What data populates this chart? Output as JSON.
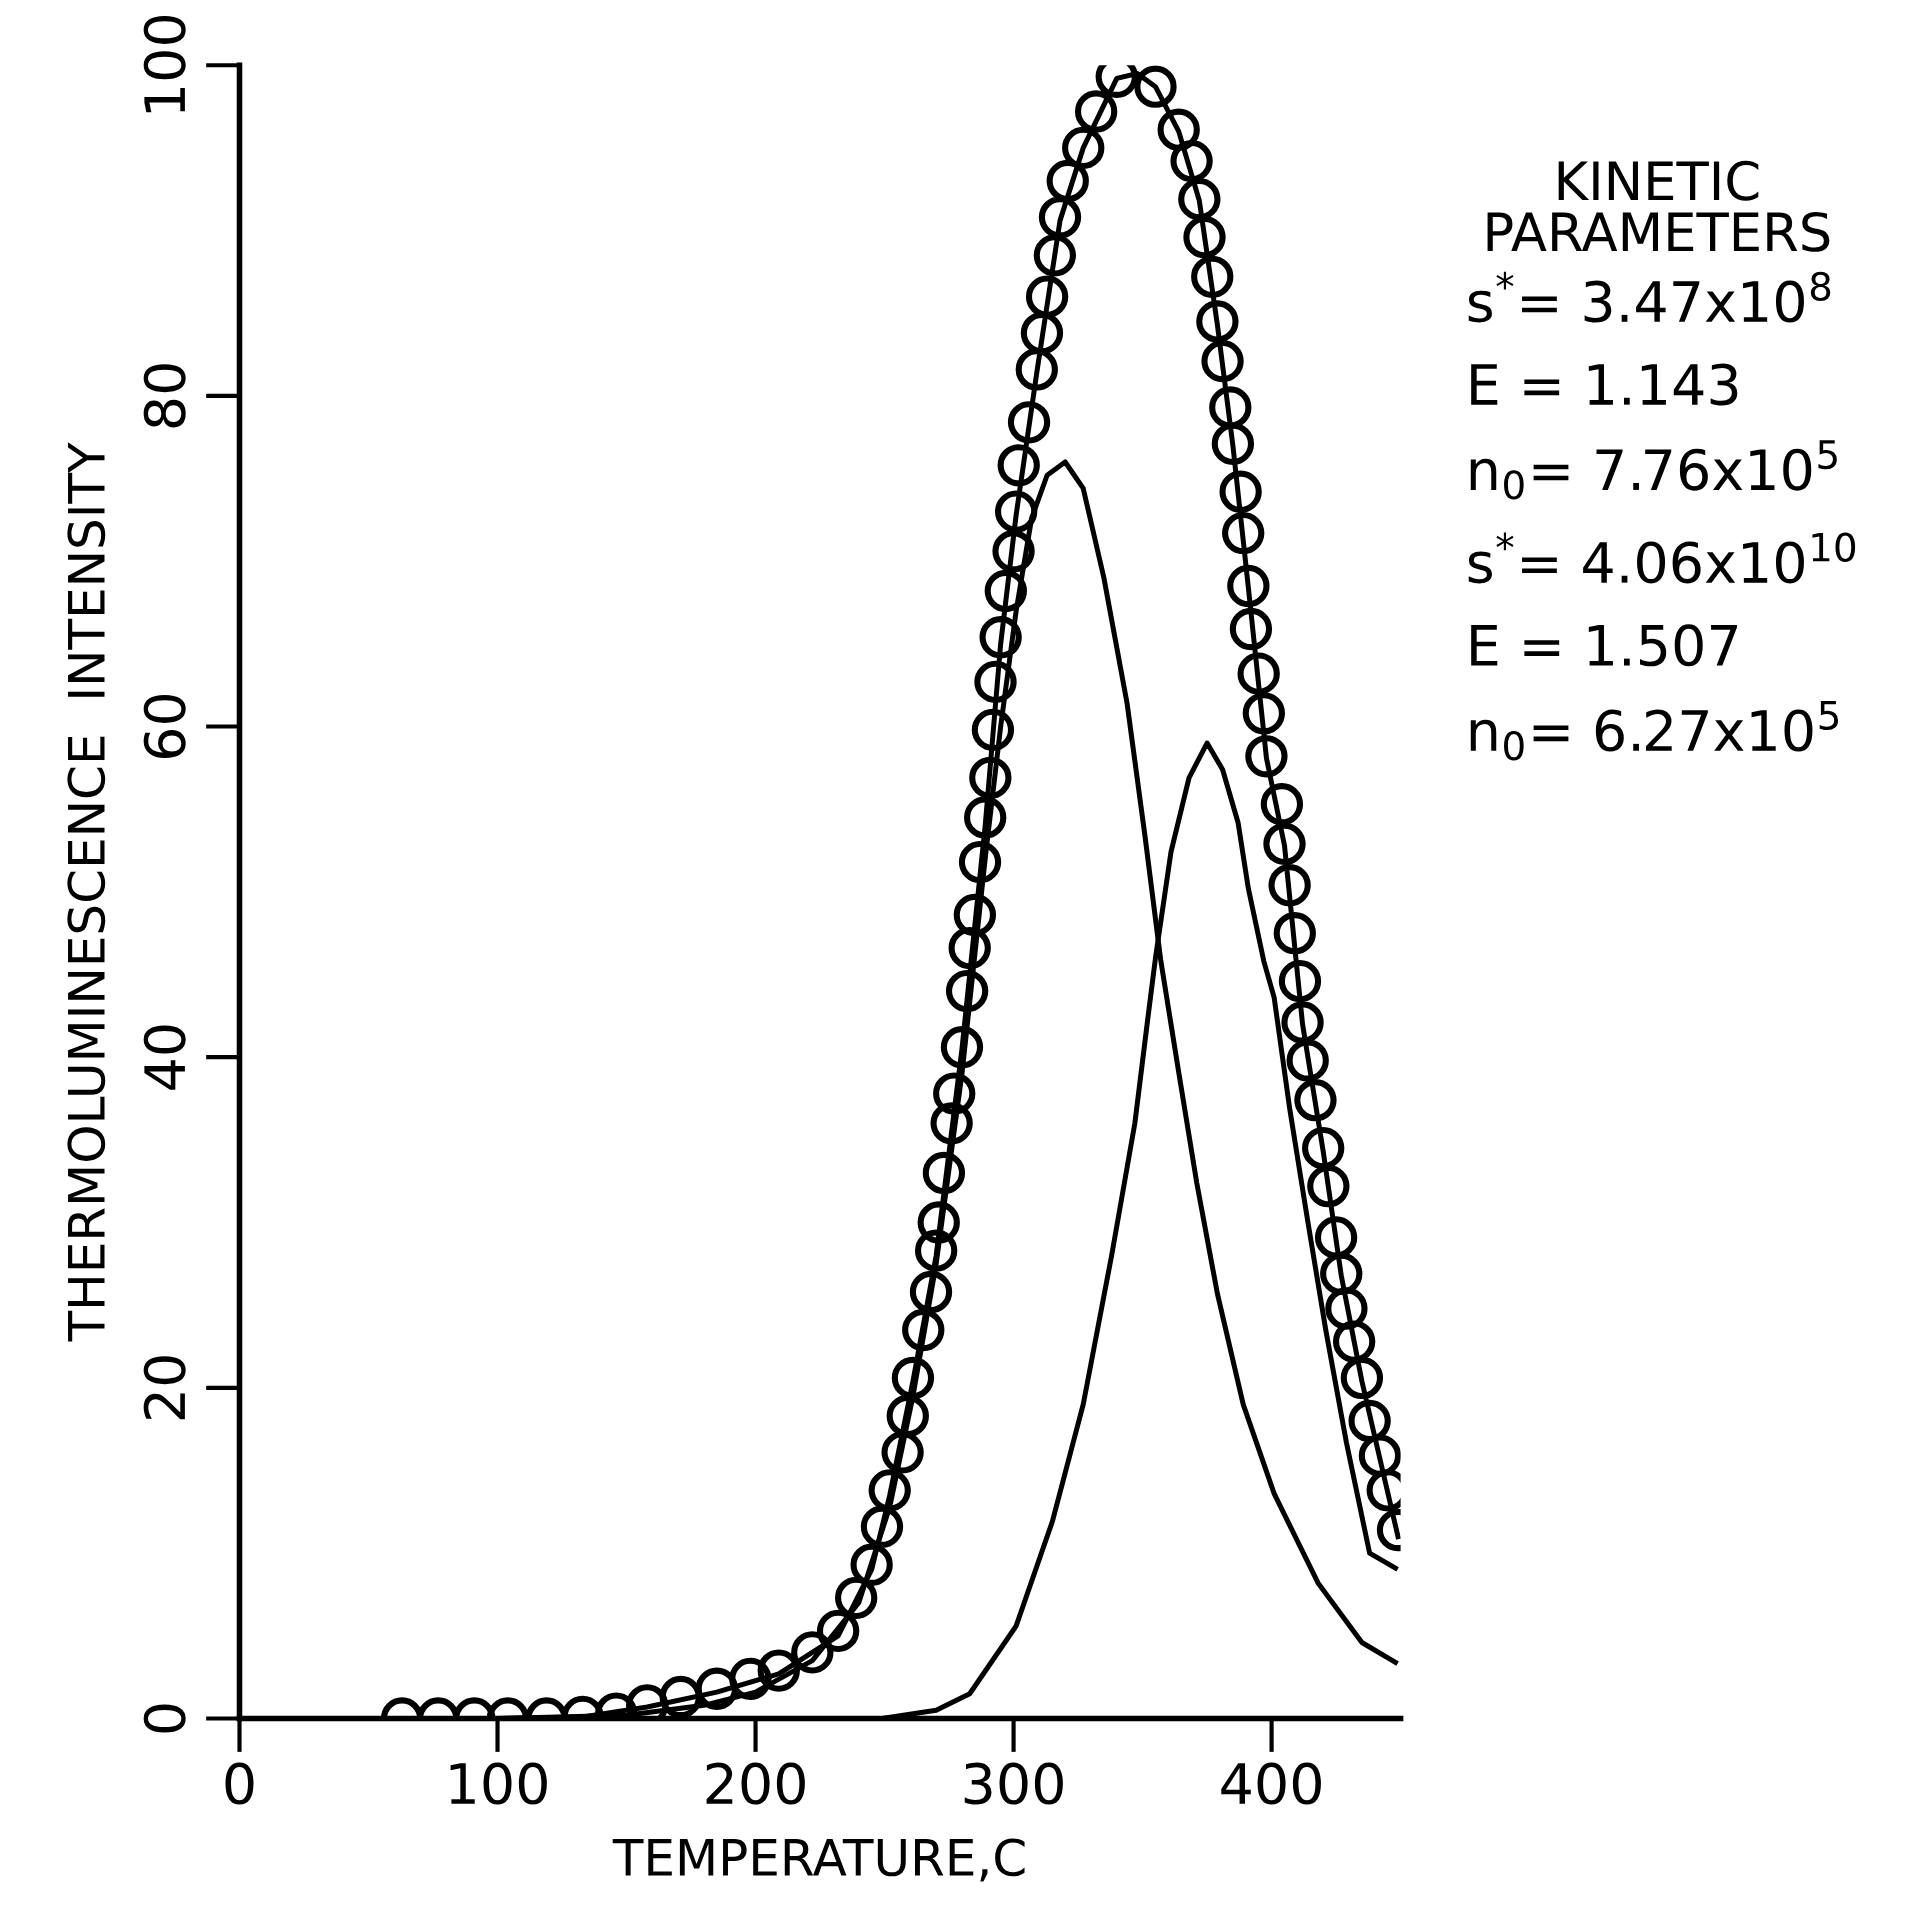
{
  "chart_data": {
    "type": "scatter",
    "xlabel": "TEMPERATURE,C",
    "ylabel": "THERMOLUMINESCENCE  INTENSITY",
    "xlim": [
      0,
      450
    ],
    "ylim": [
      0,
      100
    ],
    "xticks": [
      0,
      100,
      200,
      300,
      400
    ],
    "yticks": [
      0,
      20,
      40,
      60,
      80,
      100
    ],
    "grid": false,
    "legend": false,
    "series": [
      {
        "marker": "circle",
        "color": "#000000",
        "x": [
          63,
          77,
          91,
          104,
          119,
          133,
          146,
          158,
          171,
          185,
          198,
          209,
          222,
          232,
          239,
          245,
          249,
          252,
          257,
          259,
          261,
          265,
          268,
          270,
          271,
          273,
          276,
          277,
          280,
          282,
          283,
          285,
          287,
          289,
          291,
          292,
          293,
          295,
          297,
          300,
          301,
          302,
          306,
          309,
          311,
          313,
          316,
          318,
          321,
          327,
          332,
          340,
          355,
          364,
          369,
          372,
          374,
          377,
          379,
          381,
          384,
          385,
          388,
          389,
          391,
          392,
          395,
          397,
          398,
          404,
          405,
          407,
          409,
          411,
          412,
          414,
          417,
          420,
          422,
          425,
          427,
          429,
          432,
          435,
          438,
          442,
          445,
          449
        ],
        "values": [
          0,
          0,
          0,
          0,
          0,
          0.1,
          0.3,
          0.8,
          1.3,
          1.8,
          2.4,
          2.9,
          4.0,
          5.3,
          7.3,
          9.3,
          11.6,
          13.8,
          16.1,
          18.3,
          20.6,
          23.5,
          25.8,
          28.3,
          30,
          33,
          36,
          37.8,
          40.6,
          44,
          46.6,
          48.6,
          51.8,
          54.5,
          56.9,
          59.8,
          62.7,
          65.4,
          68.2,
          70.6,
          73,
          75.8,
          78.4,
          81.6,
          83.8,
          86,
          88.5,
          90.8,
          93,
          95,
          97.2,
          99.3,
          98.7,
          96.1,
          94.2,
          91.9,
          89.6,
          87.2,
          84.5,
          82.1,
          79.3,
          77.1,
          74.2,
          71.7,
          68.5,
          65.9,
          63.2,
          60.8,
          58.2,
          55.3,
          52.9,
          50.4,
          47.5,
          44.6,
          42.1,
          39.8,
          37.4,
          34.5,
          32.2,
          29.1,
          26.9,
          24.8,
          22.8,
          20.6,
          18,
          15.9,
          13.8,
          11.4
        ]
      },
      {
        "type": "line",
        "marker": "none",
        "line_style": "solid",
        "color": "#000000",
        "x": [
          0,
          60,
          100,
          133,
          158,
          185,
          209,
          232,
          245,
          252,
          261,
          270,
          280,
          289,
          295,
          301,
          309,
          318,
          327,
          340,
          348,
          355,
          364,
          372,
          379,
          385,
          391,
          398,
          405,
          412,
          420,
          427,
          435,
          442,
          449
        ],
        "values": [
          0,
          0,
          0,
          0.1,
          0.7,
          1.6,
          2.7,
          5.0,
          9.0,
          13.5,
          20.4,
          28.0,
          40.5,
          54.0,
          65.0,
          72.8,
          81.4,
          90.6,
          95.0,
          99.2,
          99.5,
          98.7,
          96.0,
          91.8,
          84.3,
          77.0,
          68.4,
          58.1,
          52.8,
          42.0,
          34.3,
          26.8,
          20.4,
          15.7,
          11.0
        ]
      },
      {
        "type": "line",
        "marker": "none",
        "line_style": "solid",
        "color": "#000000",
        "x": [
          0,
          100,
          150,
          180,
          200,
          222,
          240,
          252,
          261,
          270,
          280,
          289,
          295,
          301,
          307,
          313,
          320,
          327,
          335,
          344,
          351,
          357,
          364,
          371,
          379,
          389,
          401,
          418,
          435,
          448
        ],
        "values": [
          0,
          0,
          0.2,
          0.8,
          1.6,
          3.5,
          7,
          12.8,
          19.5,
          27.5,
          39,
          52,
          60,
          67,
          72.6,
          75.2,
          76,
          74.4,
          69,
          61.4,
          53.3,
          45.9,
          39.1,
          32.4,
          25.7,
          19,
          13.6,
          8.2,
          4.6,
          3.4
        ]
      },
      {
        "type": "line",
        "marker": "none",
        "line_style": "solid",
        "color": "#000000",
        "x": [
          0,
          249,
          270,
          283,
          301,
          315,
          327,
          338,
          347,
          352,
          355,
          361,
          368,
          375,
          381,
          387,
          391,
          397,
          401,
          407,
          414,
          421,
          429,
          438,
          448
        ],
        "values": [
          0,
          0,
          0.5,
          1.5,
          5.6,
          11.9,
          19,
          28,
          36,
          42.3,
          46,
          52.4,
          56.9,
          59,
          57.4,
          54.2,
          50.2,
          45.8,
          43.6,
          36.9,
          30.1,
          23.5,
          16.7,
          10,
          9.1
        ]
      }
    ],
    "annotations": [
      "KINETIC\nPARAMETERS",
      "s$^{*}$= 3.47x10$^{8}$",
      "E = 1.143",
      "n$_{0}$= 7.76x10$^{5}$",
      "s$^{*}$= 4.06x10$^{10}$",
      "E = 1.507",
      "n$_{0}$= 6.27x10$^{5}$"
    ]
  }
}
